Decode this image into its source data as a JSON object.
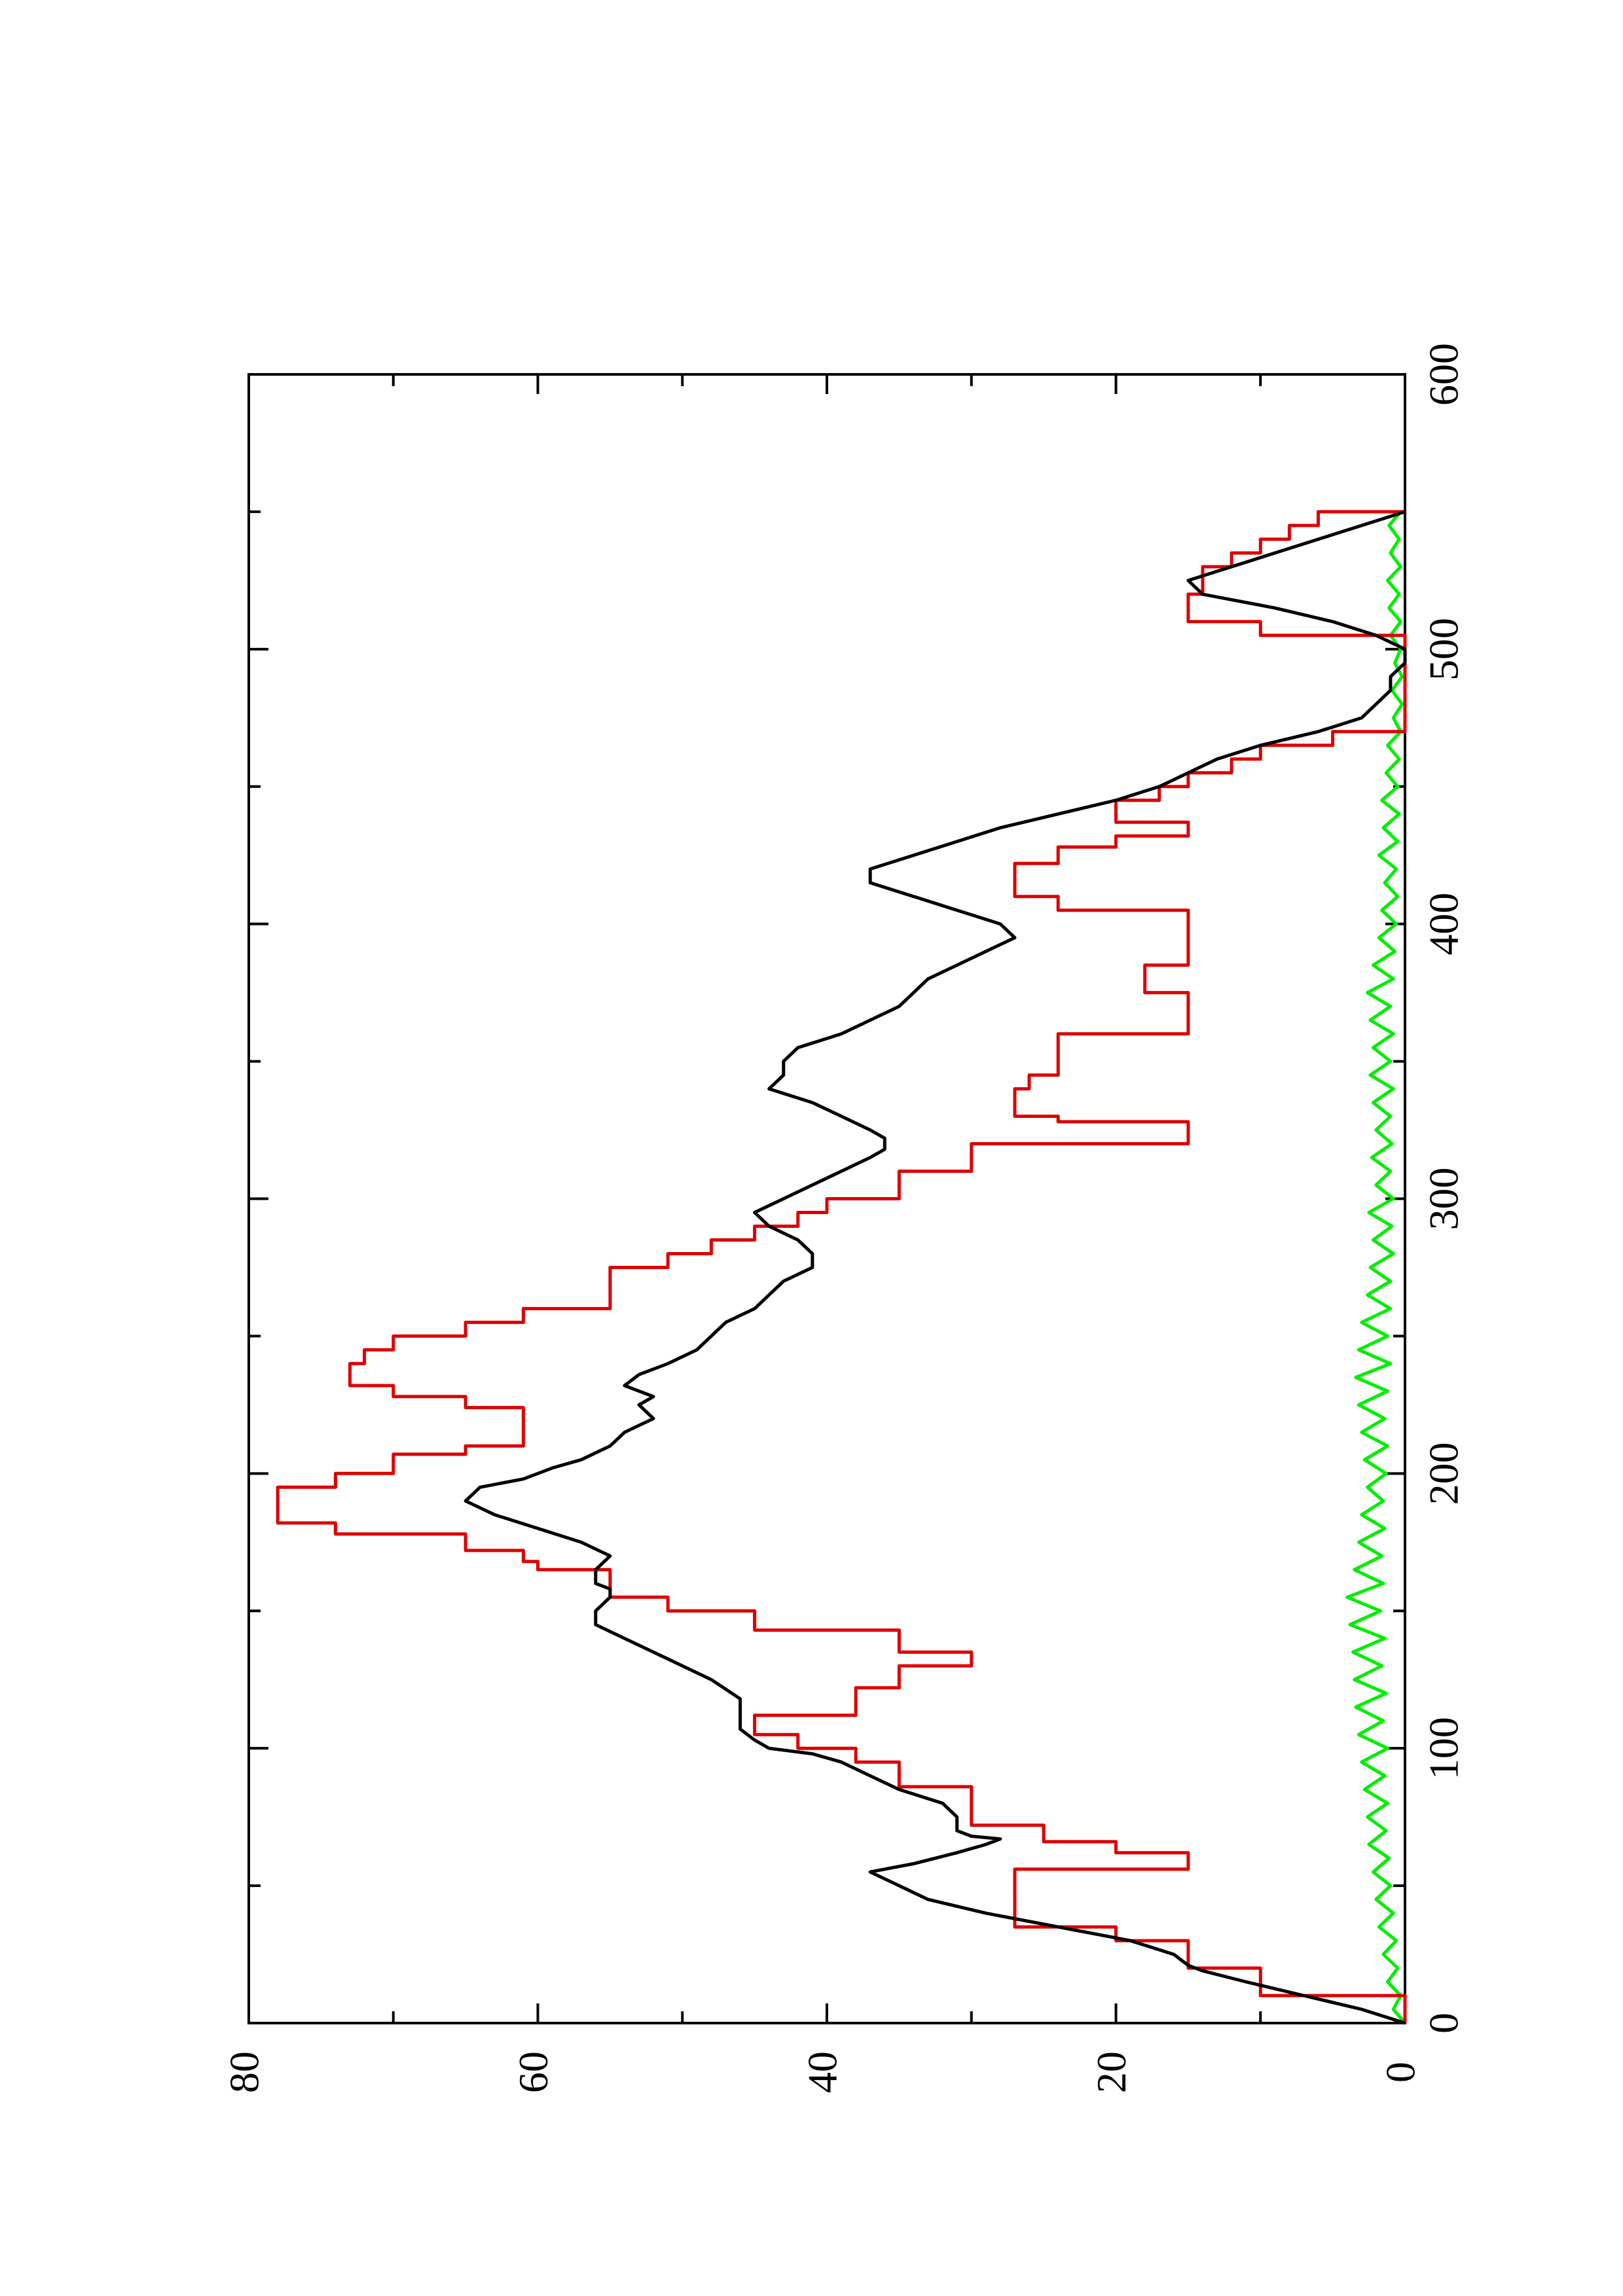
{
  "chart_data": {
    "type": "line",
    "title": "",
    "xlabel": "",
    "ylabel": "",
    "xlim": [
      0,
      600
    ],
    "ylim": [
      0,
      80
    ],
    "x_ticks": [
      "0",
      "100",
      "200",
      "300",
      "400",
      "500",
      "600"
    ],
    "y_ticks": [
      "0",
      "20",
      "40",
      "60",
      "80"
    ],
    "x_minor_ticks": [
      50,
      150,
      250,
      350,
      450,
      550
    ],
    "y_minor_ticks": [
      10,
      30,
      50,
      70
    ],
    "grid": false,
    "legend": "none",
    "orientation_note": "figure rotated 90 degrees counter-clockwise on the page",
    "series": [
      {
        "color": "#000000",
        "style": "line",
        "points": [
          [
            0,
            0
          ],
          [
            5,
            3
          ],
          [
            10,
            7
          ],
          [
            15,
            11
          ],
          [
            19,
            14
          ],
          [
            21,
            15
          ],
          [
            25,
            16
          ],
          [
            30,
            19
          ],
          [
            35,
            24
          ],
          [
            40,
            29
          ],
          [
            45,
            33
          ],
          [
            50,
            35
          ],
          [
            55,
            37
          ],
          [
            58,
            34
          ],
          [
            62,
            31
          ],
          [
            65,
            29
          ],
          [
            67,
            28
          ],
          [
            68,
            30
          ],
          [
            70,
            31
          ],
          [
            75,
            31
          ],
          [
            80,
            32
          ],
          [
            85,
            35
          ],
          [
            90,
            37
          ],
          [
            95,
            39
          ],
          [
            98,
            41
          ],
          [
            100,
            44
          ],
          [
            103,
            45
          ],
          [
            107,
            46
          ],
          [
            112,
            46
          ],
          [
            118,
            46
          ],
          [
            125,
            48
          ],
          [
            130,
            50
          ],
          [
            135,
            52
          ],
          [
            140,
            54
          ],
          [
            145,
            56
          ],
          [
            150,
            56
          ],
          [
            155,
            55
          ],
          [
            158,
            55
          ],
          [
            160,
            56
          ],
          [
            165,
            56
          ],
          [
            170,
            55
          ],
          [
            175,
            57
          ],
          [
            180,
            60
          ],
          [
            185,
            63
          ],
          [
            190,
            65
          ],
          [
            195,
            64
          ],
          [
            198,
            61
          ],
          [
            202,
            59
          ],
          [
            205,
            57
          ],
          [
            210,
            55
          ],
          [
            215,
            54
          ],
          [
            220,
            52
          ],
          [
            225,
            53
          ],
          [
            228,
            52
          ],
          [
            232,
            54
          ],
          [
            236,
            53
          ],
          [
            240,
            51
          ],
          [
            245,
            49
          ],
          [
            250,
            48
          ],
          [
            255,
            47
          ],
          [
            260,
            45
          ],
          [
            265,
            44
          ],
          [
            270,
            43
          ],
          [
            275,
            41
          ],
          [
            280,
            41
          ],
          [
            285,
            42
          ],
          [
            290,
            44
          ],
          [
            295,
            45
          ],
          [
            300,
            43
          ],
          [
            305,
            41
          ],
          [
            310,
            39
          ],
          [
            315,
            37
          ],
          [
            318,
            36
          ],
          [
            322,
            36
          ],
          [
            325,
            37
          ],
          [
            330,
            39
          ],
          [
            335,
            41
          ],
          [
            340,
            44
          ],
          [
            345,
            43
          ],
          [
            350,
            43
          ],
          [
            355,
            42
          ],
          [
            360,
            39
          ],
          [
            365,
            37
          ],
          [
            370,
            35
          ],
          [
            375,
            34
          ],
          [
            380,
            33
          ],
          [
            385,
            31
          ],
          [
            390,
            29
          ],
          [
            395,
            27
          ],
          [
            400,
            28
          ],
          [
            405,
            31
          ],
          [
            410,
            34
          ],
          [
            415,
            37
          ],
          [
            420,
            37
          ],
          [
            425,
            34
          ],
          [
            430,
            31
          ],
          [
            435,
            28
          ],
          [
            440,
            24
          ],
          [
            445,
            20
          ],
          [
            450,
            17
          ],
          [
            455,
            15
          ],
          [
            460,
            13
          ],
          [
            465,
            10
          ],
          [
            470,
            6
          ],
          [
            475,
            3
          ],
          [
            480,
            2
          ],
          [
            485,
            1
          ],
          [
            490,
            1
          ],
          [
            495,
            0
          ],
          [
            500,
            0
          ],
          [
            505,
            2
          ],
          [
            510,
            5
          ],
          [
            515,
            9
          ],
          [
            518,
            12
          ],
          [
            520,
            14
          ],
          [
            525,
            15
          ],
          [
            530,
            12
          ],
          [
            535,
            9
          ],
          [
            540,
            6
          ],
          [
            545,
            3
          ],
          [
            550,
            0
          ]
        ]
      },
      {
        "color": "#dd0000",
        "style": "step",
        "points": [
          [
            0,
            0
          ],
          [
            10,
            10
          ],
          [
            15,
            10
          ],
          [
            20,
            15
          ],
          [
            25,
            15
          ],
          [
            30,
            20
          ],
          [
            35,
            27
          ],
          [
            40,
            27
          ],
          [
            56,
            15
          ],
          [
            62,
            20
          ],
          [
            66,
            25
          ],
          [
            68,
            25
          ],
          [
            72,
            30
          ],
          [
            80,
            30
          ],
          [
            86,
            35
          ],
          [
            90,
            35
          ],
          [
            95,
            38
          ],
          [
            100,
            42
          ],
          [
            105,
            45
          ],
          [
            108,
            45
          ],
          [
            112,
            38
          ],
          [
            118,
            38
          ],
          [
            122,
            35
          ],
          [
            125,
            35
          ],
          [
            130,
            30
          ],
          [
            135,
            35
          ],
          [
            143,
            45
          ],
          [
            150,
            51
          ],
          [
            155,
            55
          ],
          [
            160,
            55
          ],
          [
            165,
            60
          ],
          [
            168,
            61
          ],
          [
            172,
            65
          ],
          [
            178,
            74
          ],
          [
            182,
            78
          ],
          [
            190,
            78
          ],
          [
            195,
            74
          ],
          [
            200,
            70
          ],
          [
            207,
            65
          ],
          [
            210,
            61
          ],
          [
            220,
            61
          ],
          [
            224,
            65
          ],
          [
            228,
            70
          ],
          [
            232,
            73
          ],
          [
            236,
            73
          ],
          [
            240,
            72
          ],
          [
            245,
            70
          ],
          [
            250,
            65
          ],
          [
            255,
            61
          ],
          [
            260,
            55
          ],
          [
            270,
            55
          ],
          [
            275,
            51
          ],
          [
            280,
            48
          ],
          [
            285,
            45
          ],
          [
            290,
            42
          ],
          [
            295,
            40
          ],
          [
            300,
            35
          ],
          [
            310,
            30
          ],
          [
            320,
            15
          ],
          [
            328,
            24
          ],
          [
            330,
            27
          ],
          [
            335,
            27
          ],
          [
            340,
            26
          ],
          [
            345,
            24
          ],
          [
            350,
            24
          ],
          [
            360,
            15
          ],
          [
            370,
            15
          ],
          [
            375,
            18
          ],
          [
            378,
            18
          ],
          [
            385,
            15
          ],
          [
            398,
            15
          ],
          [
            405,
            24
          ],
          [
            410,
            27
          ],
          [
            415,
            27
          ],
          [
            422,
            24
          ],
          [
            428,
            20
          ],
          [
            432,
            15
          ],
          [
            437,
            20
          ],
          [
            442,
            20
          ],
          [
            445,
            17
          ],
          [
            450,
            15
          ],
          [
            455,
            12
          ],
          [
            460,
            10
          ],
          [
            465,
            5
          ],
          [
            470,
            0
          ],
          [
            505,
            10
          ],
          [
            510,
            15
          ],
          [
            515,
            15
          ],
          [
            520,
            14
          ],
          [
            525,
            14
          ],
          [
            530,
            12
          ],
          [
            535,
            10
          ],
          [
            540,
            8
          ],
          [
            545,
            6
          ],
          [
            550,
            0
          ]
        ]
      },
      {
        "color": "#00ee00",
        "style": "line",
        "points": [
          [
            0,
            0
          ],
          [
            5,
            0.8
          ],
          [
            10,
            0.3
          ],
          [
            15,
            1.2
          ],
          [
            20,
            0.5
          ],
          [
            25,
            1.5
          ],
          [
            30,
            0.6
          ],
          [
            35,
            1.8
          ],
          [
            40,
            0.8
          ],
          [
            45,
            2.0
          ],
          [
            50,
            1.0
          ],
          [
            55,
            2.2
          ],
          [
            60,
            1.1
          ],
          [
            65,
            2.5
          ],
          [
            70,
            1.3
          ],
          [
            75,
            2.6
          ],
          [
            80,
            1.2
          ],
          [
            85,
            2.8
          ],
          [
            90,
            1.4
          ],
          [
            95,
            3.0
          ],
          [
            100,
            1.2
          ],
          [
            105,
            3.2
          ],
          [
            110,
            1.5
          ],
          [
            115,
            3.4
          ],
          [
            120,
            1.3
          ],
          [
            125,
            3.5
          ],
          [
            130,
            1.6
          ],
          [
            135,
            3.6
          ],
          [
            140,
            1.4
          ],
          [
            145,
            3.8
          ],
          [
            150,
            1.7
          ],
          [
            155,
            4.0
          ],
          [
            160,
            1.5
          ],
          [
            165,
            3.5
          ],
          [
            170,
            1.6
          ],
          [
            175,
            3.2
          ],
          [
            180,
            1.4
          ],
          [
            185,
            3.0
          ],
          [
            190,
            1.5
          ],
          [
            195,
            2.6
          ],
          [
            200,
            1.3
          ],
          [
            205,
            2.8
          ],
          [
            210,
            1.2
          ],
          [
            215,
            3.0
          ],
          [
            220,
            1.4
          ],
          [
            225,
            3.2
          ],
          [
            230,
            1.2
          ],
          [
            235,
            3.4
          ],
          [
            240,
            1.0
          ],
          [
            245,
            3.2
          ],
          [
            250,
            1.2
          ],
          [
            255,
            3.0
          ],
          [
            260,
            1.0
          ],
          [
            265,
            2.6
          ],
          [
            270,
            1.0
          ],
          [
            275,
            2.4
          ],
          [
            280,
            0.8
          ],
          [
            285,
            2.2
          ],
          [
            290,
            0.9
          ],
          [
            295,
            2.5
          ],
          [
            300,
            0.8
          ],
          [
            305,
            2.0
          ],
          [
            310,
            1.0
          ],
          [
            315,
            2.3
          ],
          [
            320,
            0.9
          ],
          [
            325,
            2.0
          ],
          [
            330,
            1.0
          ],
          [
            335,
            2.2
          ],
          [
            340,
            0.8
          ],
          [
            345,
            2.4
          ],
          [
            350,
            1.0
          ],
          [
            355,
            2.2
          ],
          [
            360,
            0.8
          ],
          [
            365,
            2.4
          ],
          [
            370,
            1.0
          ],
          [
            375,
            2.6
          ],
          [
            380,
            0.8
          ],
          [
            385,
            2.2
          ],
          [
            390,
            0.7
          ],
          [
            395,
            1.8
          ],
          [
            400,
            0.6
          ],
          [
            405,
            1.6
          ],
          [
            410,
            0.5
          ],
          [
            415,
            1.4
          ],
          [
            420,
            0.6
          ],
          [
            425,
            1.8
          ],
          [
            430,
            0.5
          ],
          [
            435,
            1.5
          ],
          [
            440,
            0.4
          ],
          [
            445,
            1.6
          ],
          [
            450,
            0.5
          ],
          [
            455,
            1.3
          ],
          [
            460,
            0.4
          ],
          [
            465,
            1.2
          ],
          [
            470,
            0.3
          ],
          [
            475,
            0.8
          ],
          [
            480,
            0.2
          ],
          [
            485,
            0.9
          ],
          [
            490,
            0.2
          ],
          [
            495,
            0.7
          ],
          [
            500,
            0.3
          ],
          [
            505,
            1.0
          ],
          [
            510,
            0.3
          ],
          [
            515,
            1.1
          ],
          [
            520,
            0.4
          ],
          [
            525,
            1.2
          ],
          [
            530,
            0.3
          ],
          [
            535,
            1.0
          ],
          [
            540,
            0.4
          ],
          [
            545,
            1.1
          ],
          [
            550,
            0.3
          ]
        ]
      }
    ]
  }
}
